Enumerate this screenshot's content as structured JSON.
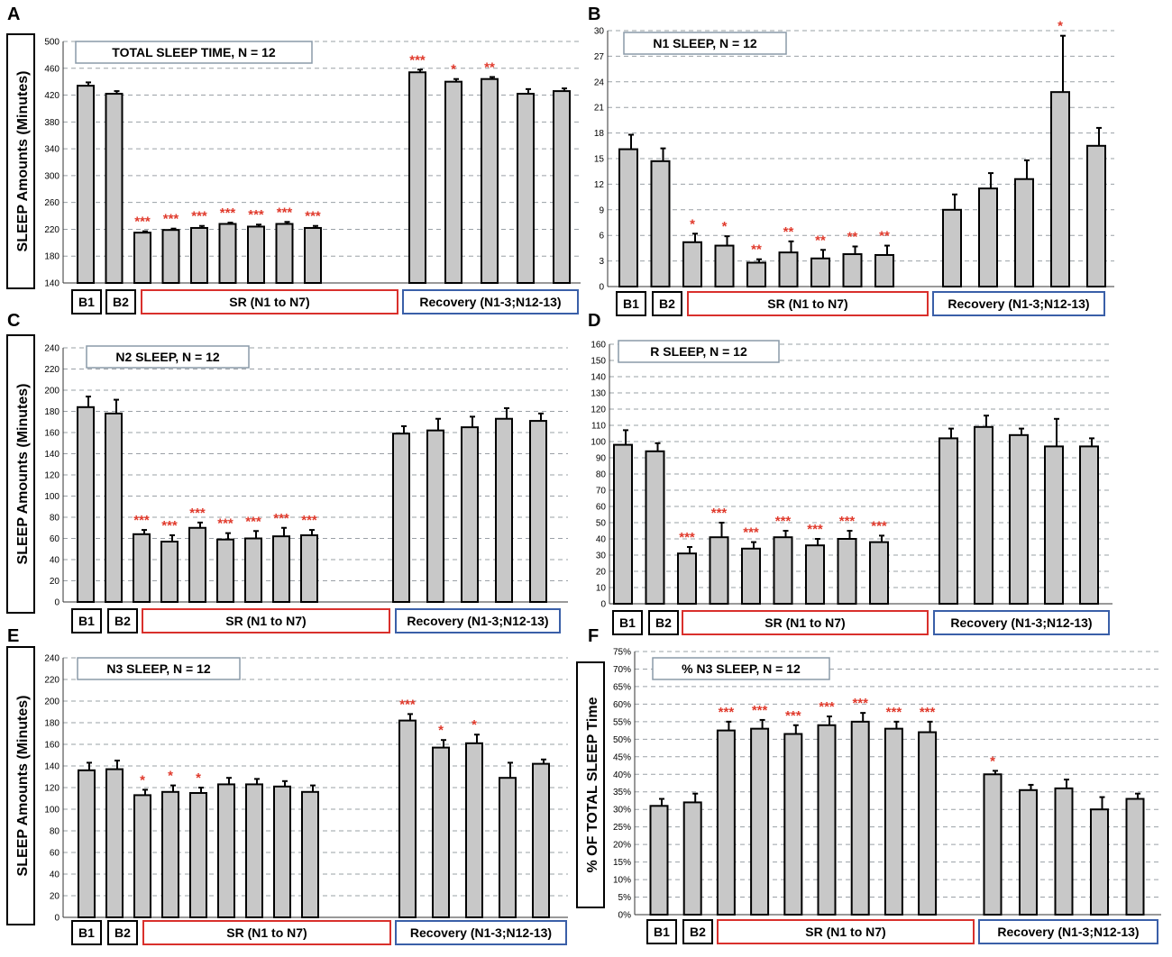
{
  "figure": {
    "ylabel_minutes": "SLEEP Amounts (Minutes)",
    "ylabel_percent": "% OF TOTAL SLEEP Time",
    "group_labels": {
      "b1": "B1",
      "b2": "B2",
      "sr": "SR (N1 to N7)",
      "recovery": "Recovery (N1-3;N12-13)"
    },
    "colors": {
      "bar_fill": "#c8c8c8",
      "bar_stroke": "#000000",
      "grid": "#9aa0a6",
      "star": "#e0392b",
      "sr_box": "#d9302c",
      "recovery_box": "#3a5fa8"
    }
  },
  "chart_data": [
    {
      "panel": "A",
      "type": "bar",
      "title": "TOTAL SLEEP TIME, N = 12",
      "ylabel": "SLEEP Amounts (Minutes)",
      "ylim": [
        140,
        500
      ],
      "yticks": [
        140,
        180,
        220,
        260,
        300,
        340,
        380,
        420,
        460,
        500
      ],
      "ytick_labels": [
        "140",
        "180",
        "220",
        "260",
        "300",
        "340",
        "380",
        "420",
        "460",
        "500"
      ],
      "categories": [
        "B1",
        "B2",
        "SR1",
        "SR2",
        "SR3",
        "SR4",
        "SR5",
        "SR6",
        "SR7",
        "R1",
        "R2",
        "R3",
        "R12",
        "R13"
      ],
      "values": [
        434,
        422,
        215,
        219,
        222,
        228,
        224,
        228,
        222,
        454,
        440,
        444,
        422,
        426
      ],
      "errors": [
        5,
        4,
        2,
        2,
        3,
        2,
        3,
        3,
        3,
        4,
        4,
        3,
        7,
        4
      ],
      "stars": [
        "",
        "",
        "***",
        "***",
        "***",
        "***",
        "***",
        "***",
        "***",
        "***",
        "*",
        "**",
        "",
        ""
      ]
    },
    {
      "panel": "B",
      "type": "bar",
      "title": "N1 SLEEP, N = 12",
      "ylabel": "",
      "ylim": [
        0,
        30
      ],
      "yticks": [
        0,
        3,
        6,
        9,
        12,
        15,
        18,
        21,
        24,
        27,
        30
      ],
      "ytick_labels": [
        "0",
        "3",
        "6",
        "9",
        "12",
        "15",
        "18",
        "21",
        "24",
        "27",
        "30"
      ],
      "categories": [
        "B1",
        "B2",
        "SR1",
        "SR2",
        "SR3",
        "SR4",
        "SR5",
        "SR6",
        "SR7",
        "R1",
        "R2",
        "R3",
        "R12",
        "R13"
      ],
      "values": [
        16.1,
        14.7,
        5.2,
        4.8,
        2.8,
        4.0,
        3.3,
        3.8,
        3.7,
        9.0,
        11.5,
        12.6,
        22.8,
        16.5
      ],
      "errors": [
        1.7,
        1.5,
        1.0,
        1.1,
        0.4,
        1.3,
        1.0,
        0.9,
        1.1,
        1.8,
        1.8,
        2.2,
        6.6,
        2.1
      ],
      "stars": [
        "",
        "",
        "*",
        "*",
        "**",
        "**",
        "**",
        "**",
        "**",
        "",
        "",
        "",
        "*",
        ""
      ]
    },
    {
      "panel": "C",
      "type": "bar",
      "title": "N2 SLEEP, N = 12",
      "ylabel": "SLEEP Amounts (Minutes)",
      "ylim": [
        0,
        240
      ],
      "yticks": [
        0,
        20,
        40,
        60,
        80,
        100,
        120,
        140,
        160,
        180,
        200,
        220,
        240
      ],
      "ytick_labels": [
        "0",
        "20",
        "40",
        "60",
        "80",
        "100",
        "120",
        "140",
        "160",
        "180",
        "200",
        "220",
        "240"
      ],
      "categories": [
        "B1",
        "B2",
        "SR1",
        "SR2",
        "SR3",
        "SR4",
        "SR5",
        "SR6",
        "SR7",
        "R1",
        "R2",
        "R3",
        "R12",
        "R13"
      ],
      "values": [
        184,
        178,
        64,
        57,
        70,
        59,
        60,
        62,
        63,
        159,
        162,
        165,
        173,
        171
      ],
      "errors": [
        10,
        13,
        4,
        6,
        5,
        6,
        7,
        8,
        5,
        7,
        11,
        10,
        10,
        7
      ],
      "stars": [
        "",
        "",
        "***",
        "***",
        "***",
        "***",
        "***",
        "***",
        "***",
        "",
        "",
        "",
        "",
        ""
      ]
    },
    {
      "panel": "D",
      "type": "bar",
      "title": "R SLEEP, N = 12",
      "ylabel": "",
      "ylim": [
        0,
        160
      ],
      "yticks": [
        0,
        10,
        20,
        30,
        40,
        50,
        60,
        70,
        80,
        90,
        100,
        110,
        120,
        130,
        140,
        150,
        160
      ],
      "ytick_labels": [
        "0",
        "10",
        "20",
        "30",
        "40",
        "50",
        "60",
        "70",
        "80",
        "90",
        "100",
        "110",
        "120",
        "130",
        "140",
        "150",
        "160"
      ],
      "categories": [
        "B1",
        "B2",
        "SR1",
        "SR2",
        "SR3",
        "SR4",
        "SR5",
        "SR6",
        "SR7",
        "R1",
        "R2",
        "R3",
        "R12",
        "R13"
      ],
      "values": [
        98,
        94,
        31,
        41,
        34,
        41,
        36,
        40,
        38,
        102,
        109,
        104,
        97,
        97
      ],
      "errors": [
        9,
        5,
        4,
        9,
        4,
        4,
        4,
        5,
        4,
        6,
        7,
        4,
        17,
        5
      ],
      "stars": [
        "",
        "",
        "***",
        "***",
        "***",
        "***",
        "***",
        "***",
        "***",
        "",
        "",
        "",
        "",
        ""
      ]
    },
    {
      "panel": "E",
      "type": "bar",
      "title": "N3 SLEEP, N = 12",
      "ylabel": "SLEEP Amounts (Minutes)",
      "ylim": [
        0,
        240
      ],
      "yticks": [
        0,
        20,
        40,
        60,
        80,
        100,
        120,
        140,
        160,
        180,
        200,
        220,
        240
      ],
      "ytick_labels": [
        "0",
        "20",
        "40",
        "60",
        "80",
        "100",
        "120",
        "140",
        "160",
        "180",
        "200",
        "220",
        "240"
      ],
      "categories": [
        "B1",
        "B2",
        "SR1",
        "SR2",
        "SR3",
        "SR4",
        "SR5",
        "SR6",
        "SR7",
        "R1",
        "R2",
        "R3",
        "R12",
        "R13"
      ],
      "values": [
        136,
        137,
        113,
        116,
        115,
        123,
        123,
        121,
        116,
        182,
        157,
        161,
        129,
        142
      ],
      "errors": [
        7,
        8,
        5,
        6,
        5,
        6,
        5,
        5,
        6,
        6,
        7,
        8,
        14,
        4
      ],
      "stars": [
        "",
        "",
        "*",
        "*",
        "*",
        "",
        "",
        "",
        "",
        "***",
        "*",
        "*",
        "",
        ""
      ]
    },
    {
      "panel": "F",
      "type": "bar",
      "title": "% N3 SLEEP, N = 12",
      "ylabel": "% OF TOTAL SLEEP Time",
      "ylim": [
        0,
        75
      ],
      "yticks": [
        0,
        5,
        10,
        15,
        20,
        25,
        30,
        35,
        40,
        45,
        50,
        55,
        60,
        65,
        70,
        75
      ],
      "ytick_labels": [
        "0%",
        "5%",
        "10%",
        "15%",
        "20%",
        "25%",
        "30%",
        "35%",
        "40%",
        "45%",
        "50%",
        "55%",
        "60%",
        "65%",
        "70%",
        "75%"
      ],
      "categories": [
        "B1",
        "B2",
        "SR1",
        "SR2",
        "SR3",
        "SR4",
        "SR5",
        "SR6",
        "SR7",
        "R1",
        "R2",
        "R3",
        "R12",
        "R13"
      ],
      "values": [
        31,
        32,
        52.5,
        53,
        51.5,
        54,
        55,
        53,
        52,
        40,
        35.5,
        36,
        30,
        33
      ],
      "errors": [
        2,
        2.5,
        2.5,
        2.5,
        2.5,
        2.5,
        2.5,
        2,
        3,
        1,
        1.5,
        2.5,
        3.5,
        1.5
      ],
      "stars": [
        "",
        "",
        "***",
        "***",
        "***",
        "***",
        "***",
        "***",
        "***",
        "*",
        "",
        "",
        "",
        ""
      ]
    }
  ]
}
